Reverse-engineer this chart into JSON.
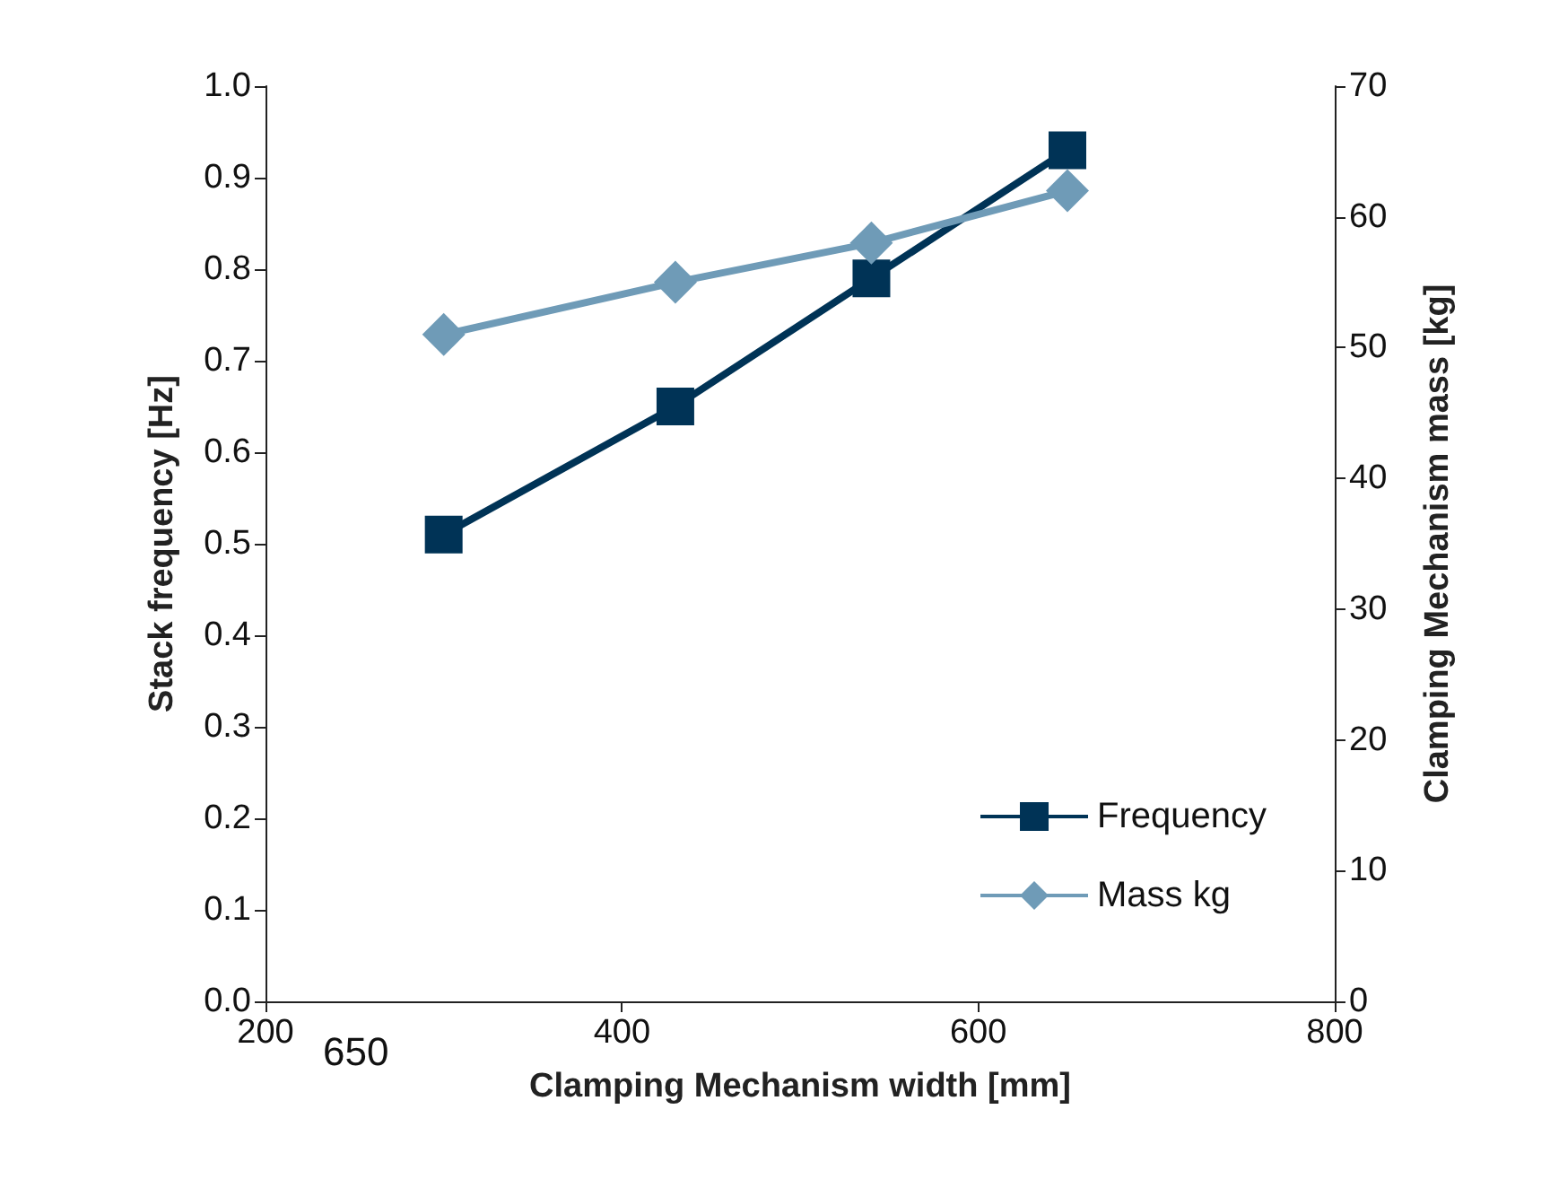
{
  "chart_data": {
    "type": "line",
    "xlabel": "Clamping Mechanism width [mm]",
    "ylabel": "Stack frequency [Hz]",
    "y2label": "Clamping Mechanism mass [kg]",
    "x": [
      300,
      430,
      540,
      650
    ],
    "series": [
      {
        "name": "Frequency",
        "color": "#003356",
        "values": [
          0.51,
          0.65,
          0.79,
          0.93
        ],
        "marker": "square"
      },
      {
        "name": "Mass kg",
        "color": "#6f9bb7",
        "values": [
          51,
          55,
          58,
          62
        ],
        "axis": "y2",
        "marker": "diamond"
      }
    ],
    "xlim": [
      200,
      800
    ],
    "xticks": [
      200,
      400,
      600,
      800
    ],
    "ylim": [
      0,
      1
    ],
    "yticks": [
      {
        "value": 0,
        "label": "0.0"
      },
      0.1,
      0.2,
      0.3,
      0.4,
      0.5,
      0.6,
      0.7,
      0.8,
      0.9,
      {
        "value": 1,
        "label": "1.0"
      }
    ],
    "y2lim": [
      0,
      70
    ],
    "y2ticks": [
      0,
      10,
      20,
      30,
      40,
      50,
      60,
      70
    ],
    "annotations": [
      "650"
    ],
    "legend": "bottom right",
    "grid": false
  }
}
